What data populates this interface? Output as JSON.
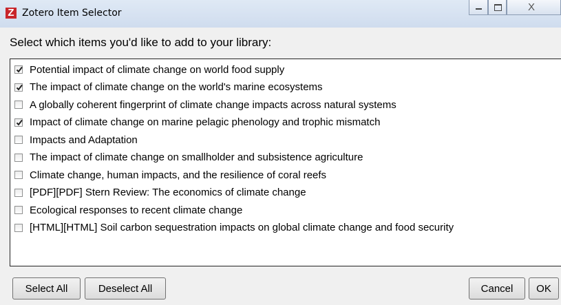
{
  "window": {
    "title": "Zotero Item Selector"
  },
  "prompt": "Select which items you'd like to add to your library:",
  "items": [
    {
      "label": "Potential impact of climate change on world food supply",
      "checked": true
    },
    {
      "label": "The impact of climate change on the world's marine ecosystems",
      "checked": true
    },
    {
      "label": "A globally coherent fingerprint of climate change impacts across natural systems",
      "checked": false
    },
    {
      "label": "Impact of climate change on marine pelagic phenology and trophic mismatch",
      "checked": true
    },
    {
      "label": "Impacts and Adaptation",
      "checked": false
    },
    {
      "label": "The impact of climate change on smallholder and subsistence agriculture",
      "checked": false
    },
    {
      "label": "Climate change, human impacts, and the resilience of coral reefs",
      "checked": false
    },
    {
      "label": "[PDF][PDF] Stern Review: The economics of climate change",
      "checked": false
    },
    {
      "label": "Ecological responses to recent climate change",
      "checked": false
    },
    {
      "label": "[HTML][HTML] Soil carbon sequestration impacts on global climate change and food security",
      "checked": false
    }
  ],
  "buttons": {
    "select_all": "Select All",
    "deselect_all": "Deselect All",
    "cancel": "Cancel",
    "ok": "OK"
  }
}
